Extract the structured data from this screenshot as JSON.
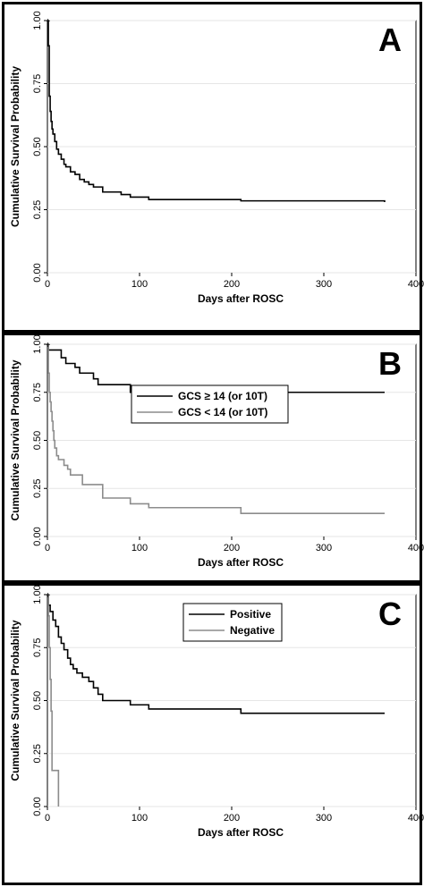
{
  "chart_data": [
    {
      "type": "line",
      "panel_letter": "A",
      "xlabel": "Days after ROSC",
      "ylabel": "Cumulative Survival Probability",
      "xlim": [
        0,
        400
      ],
      "ylim": [
        0,
        1
      ],
      "x_ticks": [
        "0",
        "100",
        "200",
        "300",
        "400"
      ],
      "y_ticks": [
        "0.00",
        "0.25",
        "0.50",
        "0.75",
        "1.00"
      ],
      "grid": true,
      "legend": null,
      "series": [
        {
          "name": "",
          "color": "#000000",
          "step_points": [
            [
              0,
              1.0
            ],
            [
              1,
              0.9
            ],
            [
              2,
              0.7
            ],
            [
              3,
              0.64
            ],
            [
              4,
              0.6
            ],
            [
              5,
              0.57
            ],
            [
              6,
              0.55
            ],
            [
              8,
              0.52
            ],
            [
              10,
              0.49
            ],
            [
              12,
              0.47
            ],
            [
              15,
              0.45
            ],
            [
              18,
              0.43
            ],
            [
              20,
              0.42
            ],
            [
              25,
              0.4
            ],
            [
              30,
              0.39
            ],
            [
              35,
              0.37
            ],
            [
              40,
              0.36
            ],
            [
              45,
              0.35
            ],
            [
              50,
              0.34
            ],
            [
              60,
              0.32
            ],
            [
              80,
              0.31
            ],
            [
              90,
              0.3
            ],
            [
              110,
              0.29
            ],
            [
              210,
              0.285
            ],
            [
              366,
              0.28
            ]
          ]
        }
      ]
    },
    {
      "type": "line",
      "panel_letter": "B",
      "xlabel": "Days after ROSC",
      "ylabel": "Cumulative Survival Probability",
      "xlim": [
        0,
        400
      ],
      "ylim": [
        0,
        1
      ],
      "x_ticks": [
        "0",
        "100",
        "200",
        "300",
        "400"
      ],
      "y_ticks": [
        "0.00",
        "0.25",
        "0.50",
        "0.75",
        "1.00"
      ],
      "grid": true,
      "legend": "top-right",
      "series": [
        {
          "name": "GCS ≥ 14 (or 10T)",
          "color": "#000000",
          "step_points": [
            [
              0,
              1.0
            ],
            [
              1,
              0.97
            ],
            [
              15,
              0.93
            ],
            [
              20,
              0.9
            ],
            [
              30,
              0.88
            ],
            [
              35,
              0.85
            ],
            [
              50,
              0.82
            ],
            [
              55,
              0.79
            ],
            [
              90,
              0.75
            ],
            [
              366,
              0.75
            ]
          ]
        },
        {
          "name": "GCS < 14 (or 10T)",
          "color": "#8c8c8c",
          "step_points": [
            [
              0,
              1.0
            ],
            [
              1,
              0.85
            ],
            [
              2,
              0.75
            ],
            [
              3,
              0.7
            ],
            [
              4,
              0.65
            ],
            [
              5,
              0.6
            ],
            [
              6,
              0.55
            ],
            [
              7,
              0.5
            ],
            [
              8,
              0.46
            ],
            [
              10,
              0.42
            ],
            [
              12,
              0.4
            ],
            [
              18,
              0.37
            ],
            [
              22,
              0.35
            ],
            [
              25,
              0.32
            ],
            [
              38,
              0.27
            ],
            [
              60,
              0.2
            ],
            [
              90,
              0.17
            ],
            [
              110,
              0.15
            ],
            [
              210,
              0.12
            ],
            [
              366,
              0.12
            ]
          ]
        }
      ]
    },
    {
      "type": "line",
      "panel_letter": "C",
      "xlabel": "Days after ROSC",
      "ylabel": "Cumulative Survival Probability",
      "xlim": [
        0,
        400
      ],
      "ylim": [
        0,
        1
      ],
      "x_ticks": [
        "0",
        "100",
        "200",
        "300",
        "400"
      ],
      "y_ticks": [
        "0.00",
        "0.25",
        "0.50",
        "0.75",
        "1.00"
      ],
      "grid": true,
      "legend": "top-right",
      "series": [
        {
          "name": "Positive",
          "color": "#000000",
          "step_points": [
            [
              0,
              1.0
            ],
            [
              1,
              0.95
            ],
            [
              3,
              0.92
            ],
            [
              6,
              0.88
            ],
            [
              9,
              0.85
            ],
            [
              12,
              0.8
            ],
            [
              15,
              0.77
            ],
            [
              18,
              0.74
            ],
            [
              22,
              0.7
            ],
            [
              25,
              0.67
            ],
            [
              28,
              0.65
            ],
            [
              32,
              0.63
            ],
            [
              38,
              0.61
            ],
            [
              45,
              0.59
            ],
            [
              50,
              0.56
            ],
            [
              55,
              0.53
            ],
            [
              60,
              0.5
            ],
            [
              90,
              0.48
            ],
            [
              110,
              0.46
            ],
            [
              210,
              0.44
            ],
            [
              366,
              0.44
            ]
          ]
        },
        {
          "name": "Negative",
          "color": "#8c8c8c",
          "step_points": [
            [
              0,
              1.0
            ],
            [
              1,
              0.9
            ],
            [
              2,
              0.75
            ],
            [
              3,
              0.6
            ],
            [
              4,
              0.45
            ],
            [
              5,
              0.17
            ],
            [
              12,
              0.0
            ]
          ]
        }
      ]
    }
  ]
}
